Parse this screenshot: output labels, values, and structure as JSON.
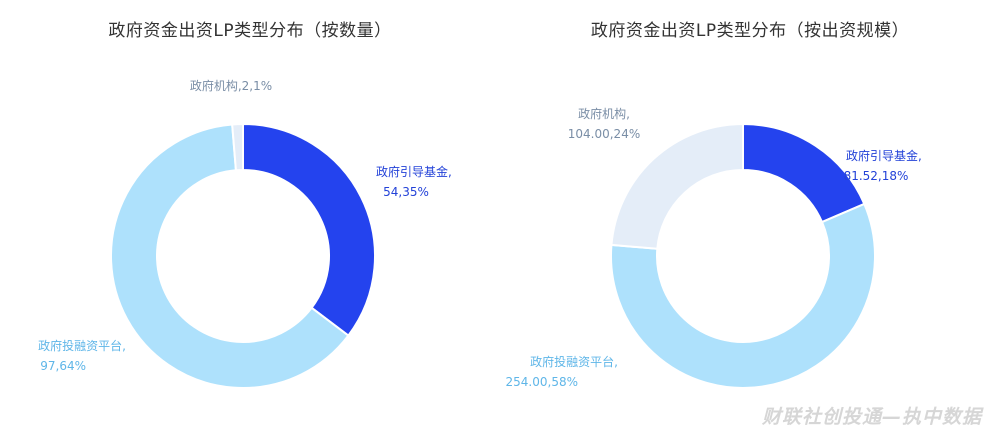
{
  "watermark": "财联社创投通—执中数据",
  "chart_data": [
    {
      "type": "pie",
      "title": "政府资金出资LP类型分布（按数量）",
      "slices": [
        {
          "name": "政府引导基金",
          "label_line1": "政府引导基金,",
          "label_line2": "54,35%",
          "value": 54,
          "percent": 35,
          "color": "#2443ee",
          "label_color": "#2342d8"
        },
        {
          "name": "政府投融资平台",
          "label_line1": "政府投融资平台,",
          "label_line2": "97,64%",
          "value": 97,
          "percent": 64,
          "color": "#aee1fc",
          "label_color": "#5fb6e8"
        },
        {
          "name": "政府机构",
          "label_line1": "政府机构,2,1%",
          "label_line2": "",
          "value": 2,
          "percent": 1,
          "color": "#e4edf8",
          "label_color": "#7a8ea6"
        }
      ]
    },
    {
      "type": "pie",
      "title": "政府资金出资LP类型分布（按出资规模）",
      "slices": [
        {
          "name": "政府引导基金",
          "label_line1": "政府引导基金,",
          "label_line2": "81.52,18%",
          "value": 81.52,
          "percent": 18,
          "color": "#2443ee",
          "label_color": "#2342d8"
        },
        {
          "name": "政府投融资平台",
          "label_line1": "政府投融资平台,",
          "label_line2": "254.00,58%",
          "value": 254.0,
          "percent": 58,
          "color": "#aee1fc",
          "label_color": "#5fb6e8"
        },
        {
          "name": "政府机构",
          "label_line1": "政府机构,",
          "label_line2": "104.00,24%",
          "value": 104.0,
          "percent": 24,
          "color": "#e4edf8",
          "label_color": "#7a8ea6"
        }
      ]
    }
  ]
}
